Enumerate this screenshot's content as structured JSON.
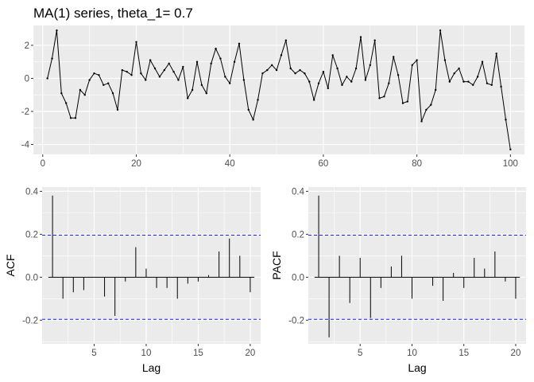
{
  "chart_data": [
    {
      "type": "line",
      "title": "MA(1) series, theta_1= 0.7",
      "xlabel": "",
      "ylabel": "",
      "xlim": [
        -2,
        103
      ],
      "ylim": [
        -4.6,
        3.2
      ],
      "xticks": [
        0,
        20,
        40,
        60,
        80,
        100
      ],
      "yticks": [
        -4,
        -2,
        0,
        2
      ],
      "grid": true,
      "x": [
        1,
        2,
        3,
        4,
        5,
        6,
        7,
        8,
        9,
        10,
        11,
        12,
        13,
        14,
        15,
        16,
        17,
        18,
        19,
        20,
        21,
        22,
        23,
        24,
        25,
        26,
        27,
        28,
        29,
        30,
        31,
        32,
        33,
        34,
        35,
        36,
        37,
        38,
        39,
        40,
        41,
        42,
        43,
        44,
        45,
        46,
        47,
        48,
        49,
        50,
        51,
        52,
        53,
        54,
        55,
        56,
        57,
        58,
        59,
        60,
        61,
        62,
        63,
        64,
        65,
        66,
        67,
        68,
        69,
        70,
        71,
        72,
        73,
        74,
        75,
        76,
        77,
        78,
        79,
        80,
        81,
        82,
        83,
        84,
        85,
        86,
        87,
        88,
        89,
        90,
        91,
        92,
        93,
        94,
        95,
        96,
        97,
        98,
        99,
        100
      ],
      "values": [
        0.0,
        1.2,
        2.9,
        -0.9,
        -1.5,
        -2.4,
        -2.4,
        -0.7,
        -1.0,
        -0.1,
        0.3,
        0.2,
        -0.4,
        -0.3,
        -0.9,
        -1.9,
        0.5,
        0.4,
        0.2,
        2.2,
        0.3,
        -0.1,
        1.1,
        0.6,
        0.1,
        0.5,
        0.9,
        0.4,
        -0.1,
        0.7,
        -1.2,
        -0.7,
        1.0,
        -0.4,
        -0.9,
        0.9,
        1.8,
        1.2,
        0.1,
        -0.3,
        1.0,
        2.1,
        -0.1,
        -1.9,
        -2.5,
        -1.3,
        0.3,
        0.5,
        0.8,
        0.5,
        1.4,
        2.3,
        0.6,
        0.3,
        0.5,
        0.3,
        -0.2,
        -1.3,
        -0.3,
        0.4,
        -0.6,
        1.4,
        0.6,
        -0.4,
        0.1,
        -0.2,
        0.6,
        2.5,
        -0.1,
        0.8,
        2.3,
        -1.2,
        -1.1,
        -0.3,
        1.3,
        0.2,
        -1.5,
        -1.4,
        0.8,
        1.1,
        -2.6,
        -1.9,
        -1.6,
        -0.7,
        2.9,
        1.1,
        -0.2,
        0.3,
        0.6,
        -0.2,
        -0.2,
        -0.4,
        0.1,
        1.0,
        -0.3,
        -0.4,
        1.5,
        -0.5,
        -2.5,
        -4.3
      ]
    },
    {
      "type": "bar",
      "xlabel": "Lag",
      "ylabel": "ACF",
      "xlim": [
        0,
        21
      ],
      "ylim": [
        -0.31,
        0.42
      ],
      "xticks": [
        5,
        10,
        15,
        20
      ],
      "yticks": [
        -0.2,
        0.0,
        0.2,
        0.4
      ],
      "confidence_bound": 0.196,
      "grid": true,
      "categories": [
        1,
        2,
        3,
        4,
        5,
        6,
        7,
        8,
        9,
        10,
        11,
        12,
        13,
        14,
        15,
        16,
        17,
        18,
        19,
        20
      ],
      "values": [
        0.38,
        -0.1,
        -0.07,
        -0.06,
        0.0,
        -0.09,
        -0.18,
        -0.02,
        0.14,
        0.04,
        -0.05,
        -0.05,
        -0.1,
        -0.03,
        -0.02,
        0.01,
        0.12,
        0.18,
        0.1,
        -0.07
      ]
    },
    {
      "type": "bar",
      "xlabel": "Lag",
      "ylabel": "PACF",
      "xlim": [
        0,
        21
      ],
      "ylim": [
        -0.31,
        0.42
      ],
      "xticks": [
        5,
        10,
        15,
        20
      ],
      "yticks": [
        -0.2,
        0.0,
        0.2,
        0.4
      ],
      "confidence_bound": 0.196,
      "grid": true,
      "categories": [
        1,
        2,
        3,
        4,
        5,
        6,
        7,
        8,
        9,
        10,
        11,
        12,
        13,
        14,
        15,
        16,
        17,
        18,
        19,
        20
      ],
      "values": [
        0.38,
        -0.28,
        0.1,
        -0.12,
        0.09,
        -0.19,
        -0.05,
        0.05,
        0.1,
        -0.1,
        0.0,
        -0.04,
        -0.11,
        0.02,
        -0.05,
        0.09,
        0.04,
        0.12,
        -0.02,
        -0.1
      ]
    }
  ]
}
